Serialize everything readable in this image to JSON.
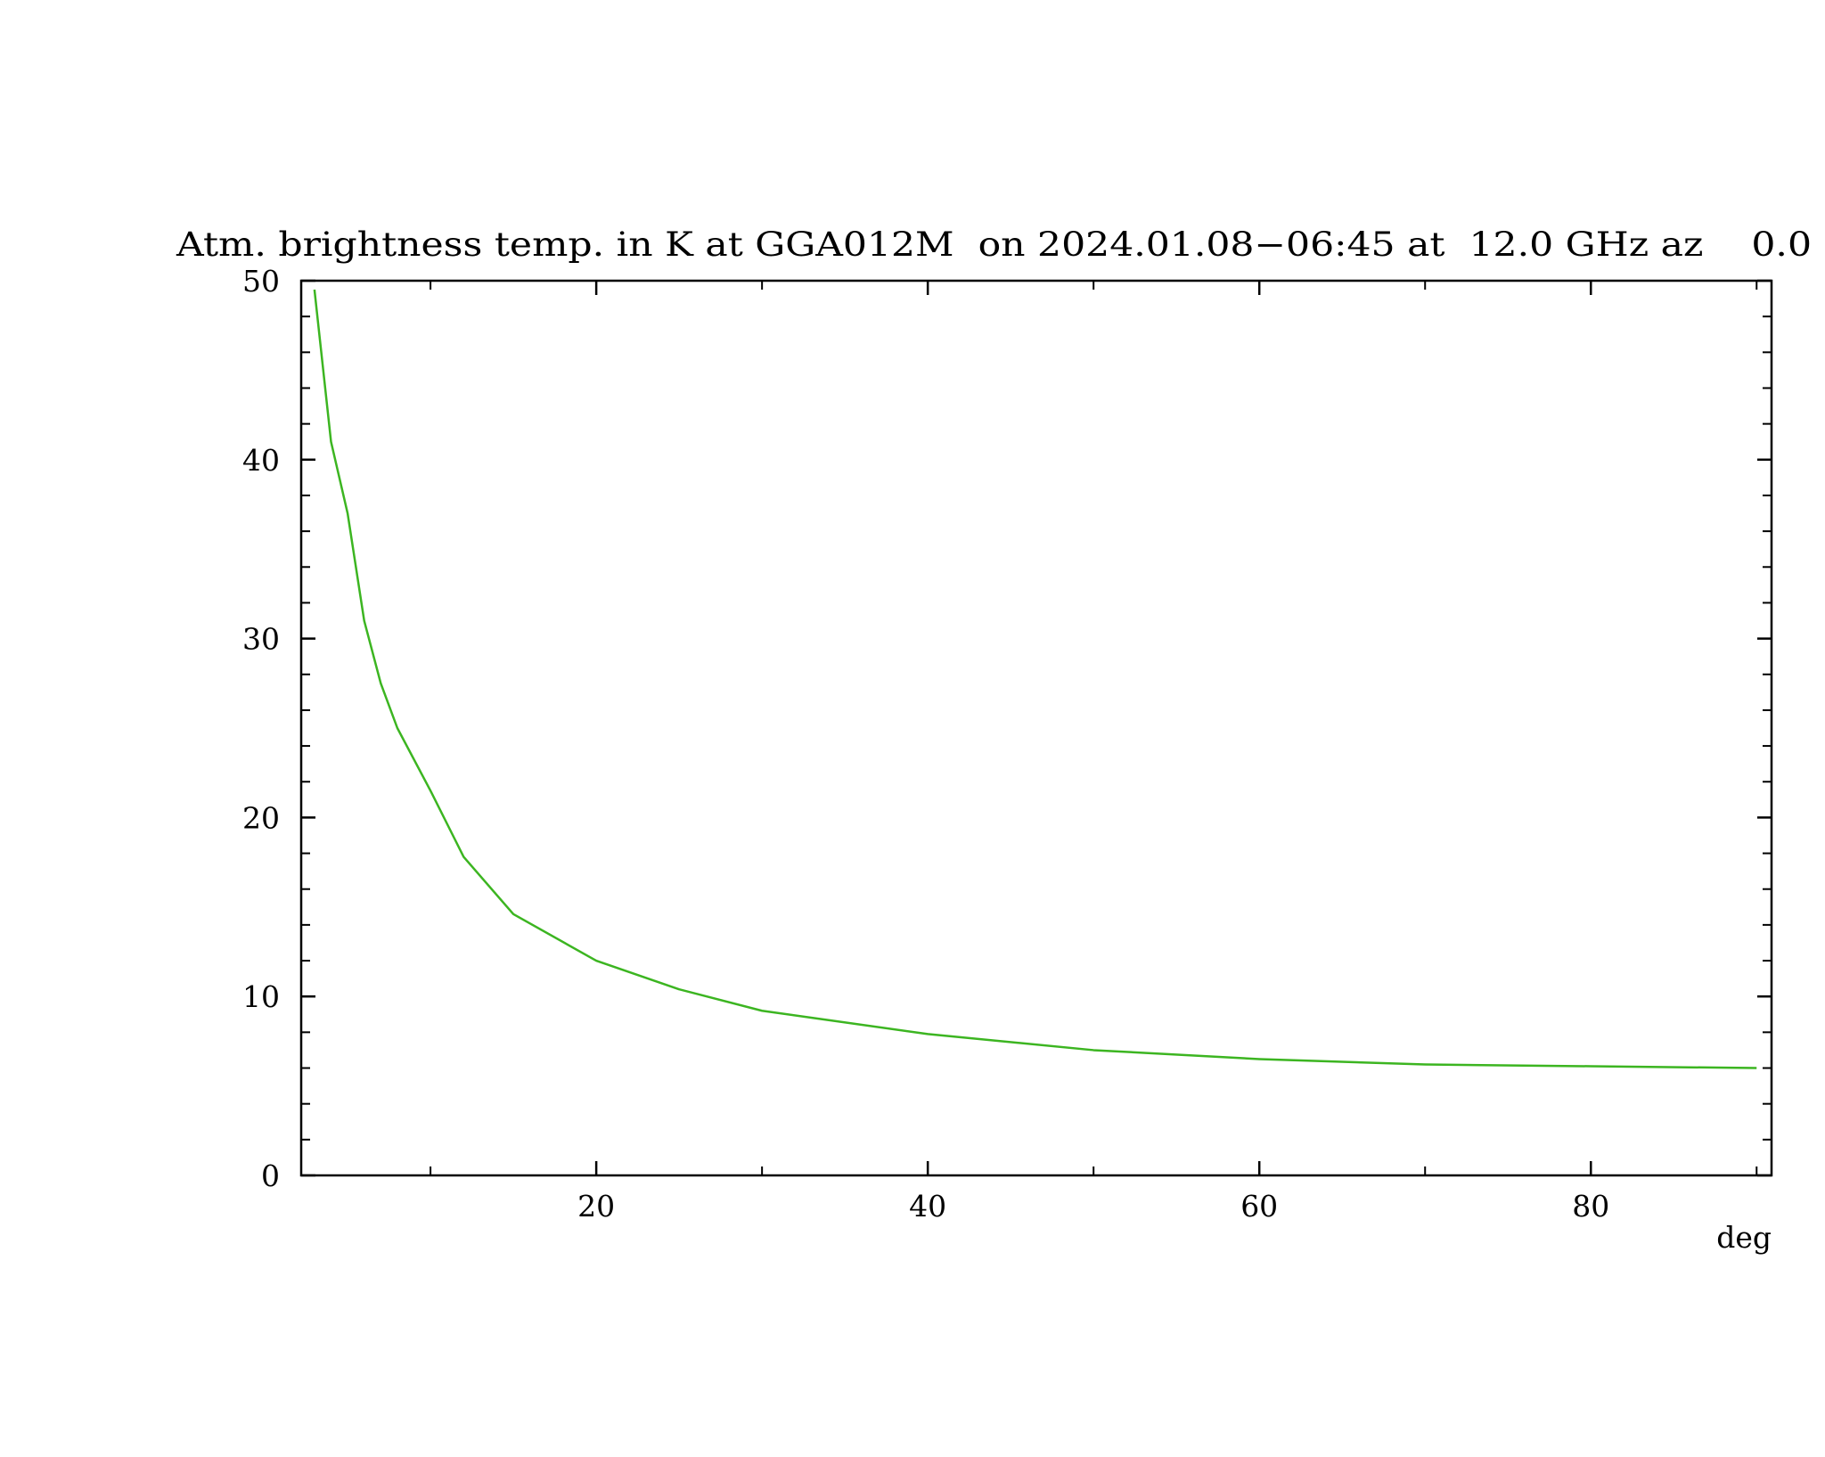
{
  "chart_data": {
    "type": "line",
    "title": "Atm. brightness temp. in K at GGA012M  on 2024.01.08−06:45 at  12.0 GHz az    0.0",
    "x_label": "deg",
    "x": [
      3,
      4,
      5,
      6,
      7,
      8,
      10,
      12,
      15,
      20,
      25,
      30,
      40,
      50,
      60,
      70,
      80,
      90
    ],
    "series": [
      {
        "color": "#3cb521",
        "values": [
          49.5,
          41,
          37,
          31,
          27.5,
          25,
          21.5,
          17.8,
          14.6,
          12.0,
          10.4,
          9.2,
          7.9,
          7.0,
          6.5,
          6.2,
          6.1,
          6.0
        ]
      }
    ],
    "xlim": [
      2.2,
      90.9
    ],
    "xticks": [
      20,
      40,
      60,
      80
    ],
    "xminorticks": [
      10,
      30,
      50,
      70,
      90
    ],
    "ylim": [
      0,
      50
    ],
    "yticks": [
      0,
      10,
      20,
      30,
      40,
      50
    ],
    "yminorticks": [
      2,
      4,
      6,
      8,
      12,
      14,
      16,
      18,
      22,
      24,
      26,
      28,
      32,
      34,
      36,
      38,
      42,
      44,
      46,
      48
    ],
    "grid": false
  }
}
